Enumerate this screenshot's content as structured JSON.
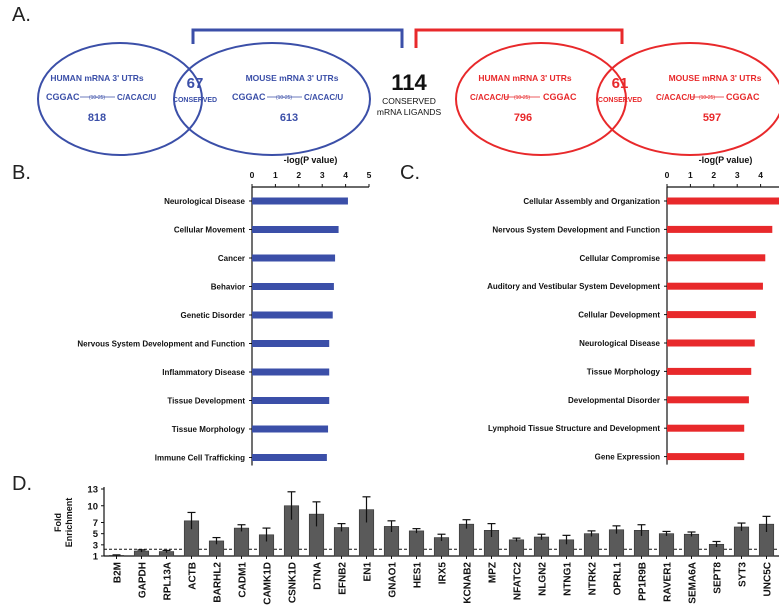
{
  "panels": {
    "a": "A.",
    "b": "B.",
    "c": "C.",
    "d": "D."
  },
  "venn": {
    "center_number": "114",
    "center_label_1": "CONSERVED",
    "center_label_2": "mRNA LIGANDS",
    "blue": {
      "color": "#3b4fa8",
      "left_title": "HUMAN mRNA 3' UTRs",
      "left_motif_a": "CGGAC",
      "left_spacer": "(10-25)",
      "left_motif_b": "C/ACAC/U",
      "left_count": "818",
      "overlap_count": "67",
      "overlap_label": "CONSERVED",
      "right_title": "MOUSE mRNA 3' UTRs",
      "right_motif_a": "CGGAC",
      "right_spacer": "(10-25)",
      "right_motif_b": "C/ACAC/U",
      "right_count": "613"
    },
    "red": {
      "color": "#e8292b",
      "left_title": "HUMAN mRNA 3' UTRs",
      "left_motif_a": "C/ACAC/U",
      "left_spacer": "(10-25)",
      "left_motif_b": "CGGAC",
      "left_count": "796",
      "overlap_count": "61",
      "overlap_label": "CONSERVED",
      "right_title": "MOUSE mRNA 3' UTRs",
      "right_motif_a": "C/ACAC/U",
      "right_spacer": "(10-25)",
      "right_motif_b": "CGGAC",
      "right_count": "597"
    }
  },
  "chart_data": [
    {
      "type": "bar",
      "orientation": "horizontal",
      "title": "-log(P value)",
      "xlim": [
        0,
        5
      ],
      "ticks": [
        "0",
        "1",
        "2",
        "3",
        "4",
        "5"
      ],
      "color": "#3b4fa8",
      "categories": [
        "Neurological Disease",
        "Cellular Movement",
        "Cancer",
        "Behavior",
        "Genetic Disorder",
        "Nervous System Development and Function",
        "Inflammatory Disease",
        "Tissue Development",
        "Tissue Morphology",
        "Immune Cell Trafficking"
      ],
      "values": [
        4.1,
        3.7,
        3.55,
        3.5,
        3.45,
        3.3,
        3.3,
        3.3,
        3.25,
        3.2
      ]
    },
    {
      "type": "bar",
      "orientation": "horizontal",
      "title": "-log(P value)",
      "xlim": [
        0,
        5
      ],
      "ticks": [
        "0",
        "1",
        "2",
        "3",
        "4"
      ],
      "color": "#e8292b",
      "categories": [
        "Cellular Assembly and Organization",
        "Nervous System Development and Function",
        "Cellular Compromise",
        "Auditory and Vestibular System Development",
        "Cellular Development",
        "Neurological Disease",
        "Tissue Morphology",
        "Developmental Disorder",
        "Lymphoid Tissue Structure and Development",
        "Gene Expression"
      ],
      "values": [
        4.8,
        4.5,
        4.2,
        4.1,
        3.8,
        3.75,
        3.6,
        3.5,
        3.3,
        3.3
      ]
    },
    {
      "type": "bar",
      "ylabel_1": "Fold",
      "ylabel_2": "Enrichment",
      "ylim": [
        1,
        13
      ],
      "ticks": [
        "1",
        "3",
        "5",
        "7",
        "10",
        "13"
      ],
      "tick_values": [
        1,
        3,
        5,
        7,
        10,
        13
      ],
      "threshold": 2.2,
      "color": "#5a5a5a",
      "categories": [
        "B2M",
        "GAPDH",
        "RPL13A",
        "ACTB",
        "BARHL2",
        "CADM1",
        "CAMK1D",
        "CSNK1D",
        "DTNA",
        "EFNB2",
        "EN1",
        "GNAO1",
        "HES1",
        "IRX5",
        "KCNAB2",
        "MPZ",
        "NFATC2",
        "NLGN2",
        "NTNG1",
        "NTRK2",
        "OPRL1",
        "PP1R9B",
        "RAVER1",
        "SEMA6A",
        "SEPT8",
        "SYT3",
        "UNC5C"
      ],
      "values": [
        1.1,
        1.9,
        1.8,
        7.3,
        3.7,
        6.0,
        4.8,
        10.0,
        8.5,
        6.1,
        9.3,
        6.3,
        5.5,
        4.3,
        6.7,
        5.6,
        3.9,
        4.4,
        3.9,
        5.0,
        5.7,
        5.6,
        5.0,
        4.9,
        3.1,
        6.2,
        6.7
      ],
      "errors": [
        0.1,
        0.2,
        0.2,
        1.5,
        0.6,
        0.6,
        1.2,
        2.5,
        2.2,
        0.7,
        2.3,
        1.0,
        0.4,
        0.6,
        0.8,
        1.2,
        0.3,
        0.5,
        0.8,
        0.5,
        0.7,
        1.0,
        0.4,
        0.4,
        0.5,
        0.7,
        1.4
      ]
    }
  ]
}
